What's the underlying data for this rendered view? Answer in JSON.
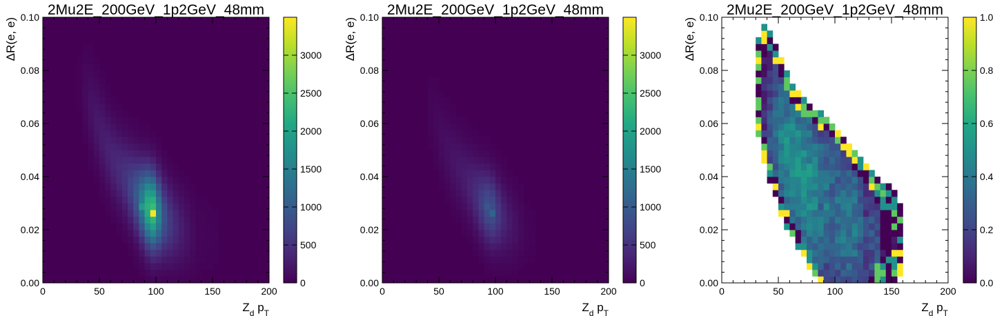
{
  "figure": {
    "background": "#ffffff"
  },
  "chart_data": [
    {
      "type": "heatmap",
      "title": "2Mu2E_200GeV_1p2GeV_48mm",
      "xlabel": "Z_d p_T",
      "ylabel": "ΔR(e, e)",
      "xlim": [
        0,
        200
      ],
      "ylim": [
        0,
        0.1
      ],
      "xticks": [
        "0",
        "50",
        "100",
        "150",
        "200"
      ],
      "yticks": [
        "0.00",
        "0.02",
        "0.04",
        "0.06",
        "0.08",
        "0.10"
      ],
      "colorbar": {
        "min": 0,
        "max": 3500,
        "ticks": [
          "0",
          "500",
          "1000",
          "1500",
          "2000",
          "2500",
          "3000"
        ]
      },
      "background_value": 0,
      "bins": [
        [
          35,
          0.081,
          20
        ],
        [
          35,
          0.073,
          80
        ],
        [
          40,
          0.067,
          180
        ],
        [
          45,
          0.061,
          240
        ],
        [
          50,
          0.055,
          280
        ],
        [
          55,
          0.05,
          320
        ],
        [
          60,
          0.046,
          360
        ],
        [
          65,
          0.043,
          420
        ],
        [
          70,
          0.04,
          500
        ],
        [
          75,
          0.037,
          650
        ],
        [
          80,
          0.034,
          900
        ],
        [
          85,
          0.031,
          1400
        ],
        [
          90,
          0.029,
          2100
        ],
        [
          95,
          0.027,
          2900
        ],
        [
          100,
          0.025,
          1200
        ],
        [
          105,
          0.024,
          800
        ],
        [
          110,
          0.022,
          550
        ],
        [
          115,
          0.021,
          380
        ],
        [
          120,
          0.02,
          260
        ],
        [
          125,
          0.019,
          180
        ],
        [
          130,
          0.018,
          120
        ],
        [
          140,
          0.018,
          80
        ],
        [
          150,
          0.017,
          50
        ]
      ],
      "spread": 0.014,
      "peaks": [
        [
          95,
          0.027,
          3450
        ],
        [
          90,
          0.029,
          2200
        ],
        [
          95,
          0.029,
          1700
        ],
        [
          85,
          0.029,
          1900
        ],
        [
          100,
          0.027,
          1500
        ],
        [
          90,
          0.032,
          1300
        ],
        [
          85,
          0.032,
          1250
        ]
      ]
    },
    {
      "type": "heatmap",
      "title": "2Mu2E_200GeV_1p2GeV_48mm",
      "xlabel": "Z_d p_T",
      "ylabel": "ΔR(e, e)",
      "xlim": [
        0,
        200
      ],
      "ylim": [
        0,
        0.1
      ],
      "xticks": [
        "0",
        "50",
        "100",
        "150",
        "200"
      ],
      "yticks": [
        "0.00",
        "0.02",
        "0.04",
        "0.06",
        "0.08",
        "0.10"
      ],
      "colorbar": {
        "min": 0,
        "max": 3500,
        "ticks": [
          "0",
          "500",
          "1000",
          "1500",
          "2000",
          "2500",
          "3000"
        ]
      },
      "background_value": 0,
      "bins": [
        [
          40,
          0.067,
          40
        ],
        [
          45,
          0.061,
          80
        ],
        [
          50,
          0.055,
          120
        ],
        [
          55,
          0.05,
          150
        ],
        [
          60,
          0.046,
          180
        ],
        [
          65,
          0.043,
          220
        ],
        [
          70,
          0.04,
          260
        ],
        [
          75,
          0.037,
          320
        ],
        [
          80,
          0.034,
          420
        ],
        [
          85,
          0.031,
          600
        ],
        [
          90,
          0.029,
          850
        ],
        [
          95,
          0.027,
          900
        ],
        [
          100,
          0.025,
          500
        ],
        [
          105,
          0.024,
          330
        ],
        [
          110,
          0.022,
          220
        ],
        [
          115,
          0.021,
          150
        ],
        [
          120,
          0.02,
          90
        ],
        [
          130,
          0.018,
          50
        ]
      ],
      "spread": 0.013,
      "peaks": [
        [
          95,
          0.027,
          1100
        ],
        [
          90,
          0.029,
          950
        ]
      ]
    },
    {
      "type": "heatmap",
      "title": "2Mu2E_200GeV_1p2GeV_48mm",
      "xlabel": "Z_d p_T",
      "ylabel": "ΔR(e, e)",
      "xlim": [
        0,
        200
      ],
      "ylim": [
        0,
        0.1
      ],
      "xticks": [
        "0",
        "50",
        "100",
        "150",
        "200"
      ],
      "yticks": [
        "0.00",
        "0.02",
        "0.04",
        "0.06",
        "0.08",
        "0.10"
      ],
      "colorbar": {
        "min": 0,
        "max": 1.0,
        "ticks": [
          "0.0",
          "0.2",
          "0.4",
          "0.6",
          "0.8",
          "1.0"
        ]
      },
      "background_value": null,
      "note_empty_bins": "white",
      "bins_ratio": true
    }
  ]
}
